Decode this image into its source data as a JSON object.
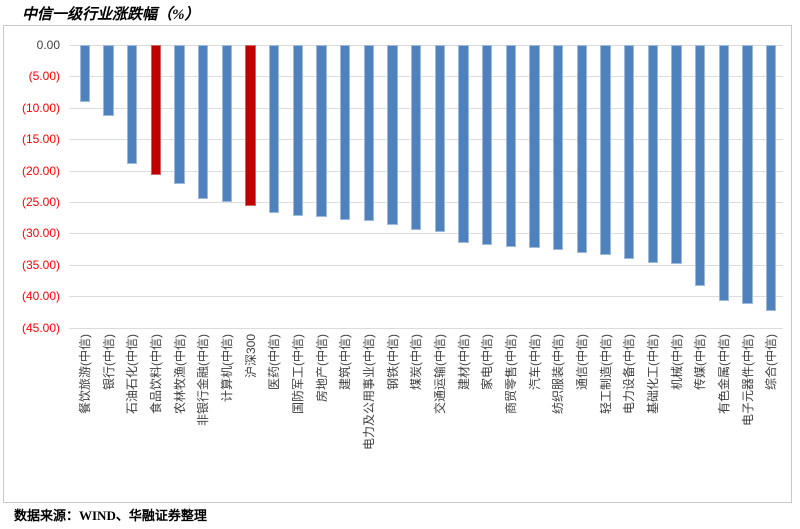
{
  "title": "中信一级行业涨跌幅（%）",
  "source": "数据来源：WIND、华融证券整理",
  "colors": {
    "bar": "#4f81bd",
    "bar_edge": "#9db9dc",
    "highlight": "#c00000",
    "highlight_edge": "#cc6666",
    "axis_label": "#404040",
    "negative_tick": "#ff0000",
    "gridline": "#dcdcdc"
  },
  "chart_data": {
    "type": "bar",
    "title": "中信一级行业涨跌幅（%）",
    "xlabel": "",
    "ylabel": "",
    "ylim": [
      -45,
      0
    ],
    "ytick_step": 5,
    "ytick_labels": [
      "0.00",
      "(5.00)",
      "(10.00)",
      "(15.00)",
      "(20.00)",
      "(25.00)",
      "(30.00)",
      "(35.00)",
      "(40.00)",
      "(45.00)"
    ],
    "grid": true,
    "legend": "none",
    "categories": [
      "餐饮旅游(中信)",
      "银行(中信)",
      "石油石化(中信)",
      "食品饮料(中信)",
      "农林牧渔(中信)",
      "非银行金融(中信)",
      "计算机(中信)",
      "沪深300",
      "医药(中信)",
      "国防军工(中信)",
      "房地产(中信)",
      "建筑(中信)",
      "电力及公用事业(中信)",
      "钢铁(中信)",
      "煤炭(中信)",
      "交通运输(中信)",
      "建材(中信)",
      "家电(中信)",
      "商贸零售(中信)",
      "汽车(中信)",
      "纺织服装(中信)",
      "通信(中信)",
      "轻工制造(中信)",
      "电力设备(中信)",
      "基础化工(中信)",
      "机械(中信)",
      "传媒(中信)",
      "有色金属(中信)",
      "电子元器件(中信)",
      "综合(中信)"
    ],
    "values": [
      -9.0,
      -11.3,
      -19.0,
      -20.7,
      -22.1,
      -24.6,
      -25.0,
      -25.7,
      -26.7,
      -27.3,
      -27.4,
      -27.9,
      -28.0,
      -28.6,
      -29.5,
      -29.8,
      -31.5,
      -31.9,
      -32.1,
      -32.3,
      -32.6,
      -33.2,
      -33.4,
      -34.0,
      -34.7,
      -34.8,
      -38.3,
      -40.8,
      -41.2,
      -42.4
    ],
    "highlight_indices": [
      3,
      7
    ]
  }
}
